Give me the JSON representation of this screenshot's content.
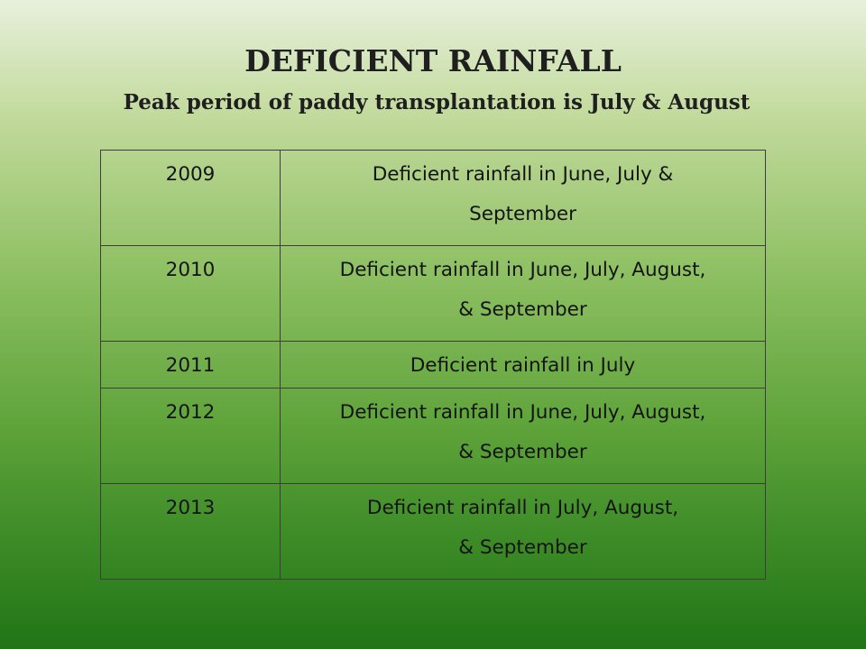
{
  "slide": {
    "title": "DEFICIENT RAINFALL",
    "subtitle": "Peak period of paddy transplantation is July & August"
  },
  "table": {
    "rows": [
      {
        "year": "2009",
        "line1": "Deficient rainfall in June, July &",
        "line2": "September"
      },
      {
        "year": "2010",
        "line1": "Deficient rainfall in June, July, August,",
        "line2": "& September"
      },
      {
        "year": "2011",
        "line1": "Deficient rainfall in July",
        "line2": ""
      },
      {
        "year": "2012",
        "line1": "Deficient rainfall in June, July, August,",
        "line2": "& September"
      },
      {
        "year": "2013",
        "line1": "Deficient rainfall in July, August,",
        "line2": "& September"
      }
    ]
  },
  "colors": {
    "background_top": "#e8f0dc",
    "background_bottom": "#217516",
    "text": "#1f1f1f",
    "border": "#3d3d3d"
  }
}
